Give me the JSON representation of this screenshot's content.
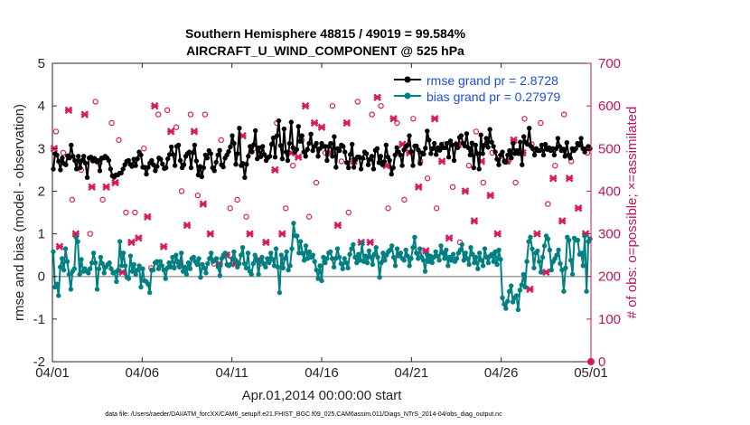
{
  "chart_data": {
    "type": "line",
    "title": "Southern Hemisphere 48815 / 49019 = 99.584%",
    "subtitle": "AIRCRAFT_U_WIND_COMPONENT @ 525 hPa",
    "xlabel": "Apr.01,2014 00:00:00 start",
    "ylabel_left": "rmse and bias (model - observation)",
    "ylabel_right": "# of obs: o=possible; ×=assimilated",
    "footnote": "data file: /Users/raeder/DAI/ATM_forcXX/CAM6_setup/f.e21.FHIST_BGC.f09_025.CAM6assim.011/Diags_NTrS_2014-04/obs_diag_output.nc",
    "xlim": [
      0,
      30
    ],
    "ylim_left": [
      -2,
      5
    ],
    "ylim_right": [
      0,
      700
    ],
    "x_ticks": [
      0,
      5,
      10,
      15,
      20,
      25,
      30
    ],
    "x_tick_labels": [
      "04/01",
      "04/06",
      "04/11",
      "04/16",
      "04/21",
      "04/26",
      "05/01"
    ],
    "y_ticks_left": [
      -2,
      -1,
      0,
      1,
      2,
      3,
      4,
      5
    ],
    "y_ticks_right": [
      0,
      100,
      200,
      300,
      400,
      500,
      600,
      700
    ],
    "legend_location": "top-right",
    "colors": {
      "rmse": "#000000",
      "bias": "#008080",
      "obs": "#d61c5c",
      "zero_line": "#a0a0a0",
      "right_axis": "#c0145a"
    },
    "series": [
      {
        "name": "rmse grand pr = 2.8728",
        "values": [
          2.52,
          2.88,
          2.85,
          2.7,
          2.5,
          2.78,
          2.65,
          2.62,
          2.83,
          2.78,
          3.08,
          2.82,
          2.72,
          2.52,
          2.82,
          2.55,
          2.72,
          2.82,
          2.66,
          2.32,
          2.78,
          2.8,
          2.71,
          2.77,
          2.7,
          2.72,
          2.48,
          2.78,
          2.78,
          2.82,
          2.78,
          2.72,
          2.52,
          2.36,
          2.33,
          2.38,
          2.38,
          2.42,
          2.43,
          2.52,
          2.62,
          2.7,
          2.72,
          2.63,
          2.58,
          2.75,
          2.6,
          2.76,
          2.92,
          2.85,
          2.56,
          2.56,
          2.4,
          2.56,
          2.66,
          2.72,
          2.62,
          2.48,
          2.58,
          2.78,
          2.75,
          2.64,
          2.53,
          2.55,
          2.76,
          2.86,
          3.04,
          2.86,
          2.6,
          3.05,
          3.08,
          2.72,
          2.55,
          2.62,
          2.82,
          2.88,
          2.92,
          2.55,
          2.9,
          3.08,
          2.71,
          2.38,
          2.58,
          2.34,
          2.55,
          2.85,
          2.78,
          2.95,
          2.88,
          2.55,
          2.48,
          2.68,
          2.85,
          2.96,
          2.62,
          2.57,
          2.78,
          2.85,
          2.93,
          3.04,
          3.3,
          3.12,
          2.63,
          2.88,
          3.48,
          2.6,
          2.65,
          2.32,
          2.63,
          2.82,
          3.05,
          2.92,
          3.09,
          3.42,
          2.76,
          3.02,
          2.81,
          3.05,
          2.86,
          2.72,
          2.79,
          2.82,
          3.1,
          3.25,
          2.8,
          3.3,
          3.65,
          3.07,
          2.76,
          3.46,
          2.92,
          2.72,
          3.12,
          3.62,
          3.02,
          2.92,
          2.98,
          3.52,
          3.17,
          3.3,
          2.92,
          2.82,
          2.98,
          3.12,
          3.34,
          2.95,
          3.05,
          3.12,
          2.82,
          3.0,
          3.12,
          3.05,
          3.05,
          2.72,
          3.05,
          3.12,
          2.82,
          3.28,
          2.56,
          3.0,
          2.95,
          3.08,
          3.05,
          2.92,
          2.67,
          2.55,
          2.86,
          3.1,
          2.56,
          2.75,
          2.8,
          2.8,
          2.52,
          2.77,
          2.92,
          2.88,
          2.62,
          2.75,
          2.82,
          2.52,
          2.96,
          3.0,
          2.67,
          2.82,
          2.62,
          2.69,
          3.08,
          2.8,
          2.72,
          2.4,
          2.55,
          2.85,
          3.02,
          2.92,
          2.85,
          2.6,
          2.97,
          3.04,
          3.08,
          3.3,
          2.93,
          2.6,
          3.06,
          3.06,
          2.97,
          2.65,
          2.9,
          2.87,
          3.01,
          3.41,
          3.2,
          2.88,
          3.0,
          3.12,
          2.86,
          3.02,
          2.96,
          3.1,
          3.02,
          3.02,
          3.12,
          2.8,
          3.18,
          3.08,
          2.72,
          3.1,
          3.02,
          3.26,
          3.3,
          3.12,
          3.06,
          3.35,
          3.02,
          2.85,
          3.13,
          2.55,
          3.08,
          2.88,
          2.52,
          3.32,
          2.88,
          3.08,
          3.24,
          3.03,
          3.45,
          3.15,
          3.05,
          2.92,
          2.75,
          2.62,
          2.85,
          2.92,
          2.7,
          2.68,
          2.85,
          2.95,
          2.78,
          3.12,
          2.88,
          2.95,
          2.88,
          3.15,
          2.62,
          3.28,
          3.15,
          3.1,
          3.48,
          3.05,
          3.0,
          2.85,
          3.0,
          2.95,
          2.95,
          3.08,
          2.85,
          3.1,
          2.98,
          3.02,
          2.95,
          3.0,
          2.85,
          3.0,
          3.24,
          3.05,
          2.95,
          2.99,
          2.82,
          3.14,
          2.85,
          2.78,
          3.0,
          2.95,
          3.0,
          3.12,
          3.08,
          3.24,
          3.0,
          2.92,
          3.0,
          3.05,
          3.0
        ]
      },
      {
        "name": "bias grand pr = 0.27979",
        "values": [
          0.58,
          -0.25,
          -0.18,
          -0.45,
          0.22,
          0.42,
          0.15,
          0.65,
          0.35,
          0.05,
          -0.3,
          0.12,
          0.18,
          0.92,
          0.82,
          0.05,
          0.4,
          0.12,
          0.18,
          0.12,
          0.08,
          0.18,
          0.32,
          0.55,
          0.32,
          -0.3,
          0.18,
          0.45,
          0.3,
          0.08,
          0.22,
          0.28,
          0.32,
          0.18,
          0.08,
          0.1,
          -0.12,
          0.15,
          0.82,
          0.25,
          0.55,
          0.25,
          -0.02,
          -0.05,
          0.48,
          0.12,
          0.28,
          0.05,
          0.15,
          0.25,
          -0.25,
          0.18,
          -0.1,
          -0.12,
          -0.18,
          -0.38,
          0.15,
          0.15,
          0.32,
          0.35,
          0.18,
          0.35,
          0.25,
          0.15,
          -0.05,
          0.2,
          0.32,
          0.22,
          0.45,
          0.2,
          0.5,
          0.35,
          0.22,
          0.55,
          0.12,
          0.22,
          0.05,
          0.32,
          0.18,
          0.42,
          0.45,
          0.35,
          0.28,
          0.42,
          -0.02,
          0.28,
          0.2,
          0.08,
          0.3,
          0.42,
          0.55,
          0.35,
          0.38,
          0.42,
          0.22,
          0.02,
          0.42,
          0.5,
          0.55,
          0.28,
          0.25,
          0.28,
          0.42,
          0.58,
          0.38,
          0.22,
          0.3,
          0.5,
          0.68,
          0.3,
          0.2,
          0.55,
          0.12,
          0.05,
          0.3,
          0.5,
          0.38,
          0.05,
          0.35,
          0.45,
          0.3,
          0.22,
          0.42,
          0.32,
          0.55,
          0.4,
          0.25,
          0.65,
          0.22,
          -0.38,
          0.5,
          0.2,
          0.42,
          0.58,
          0.15,
          0.25,
          0.65,
          1.25,
          0.95,
          0.95,
          0.55,
          0.82,
          0.55,
          0.38,
          0.72,
          0.42,
          0.58,
          0.45,
          0.5,
          0.35,
          0.15,
          -0.05,
          0.25,
          -0.1,
          0.45,
          0.32,
          0.42,
          0.55,
          0.58,
          0.42,
          0.22,
          0.42,
          0.65,
          0.45,
          0.3,
          0.18,
          0.42,
          0.32,
          0.2,
          0.52,
          0.65,
          0.75,
          0.45,
          0.32,
          0.52,
          0.38,
          0.78,
          0.35,
          0.48,
          0.32,
          0.6,
          0.45,
          0.28,
          0.52,
          0.68,
          0.45,
          -0.02,
          0.32,
          0.55,
          0.38,
          0.5,
          0.58,
          0.62,
          0.72,
          0.45,
          0.25,
          0.65,
          0.48,
          0.55,
          0.42,
          0.38,
          0.62,
          0.48,
          0.25,
          0.42,
          0.68,
          0.92,
          0.55,
          0.42,
          0.65,
          0.45,
          0.38,
          0.12,
          0.52,
          0.35,
          0.48,
          0.32,
          0.45,
          0.58,
          0.48,
          0.38,
          0.72,
          0.55,
          0.42,
          0.62,
          0.25,
          0.45,
          0.38,
          0.52,
          0.35,
          0.42,
          0.55,
          0.62,
          0.75,
          0.38,
          0.55,
          0.42,
          0.28,
          0.68,
          0.52,
          0.32,
          0.45,
          0.18,
          0.55,
          0.38,
          0.25,
          0.65,
          0.45,
          0.32,
          0.48,
          0.52,
          0.35,
          0.58,
          0.28,
          0.62,
          0.4,
          -0.5,
          -0.65,
          -0.75,
          -0.58,
          -0.35,
          -0.22,
          -0.6,
          -0.5,
          -0.45,
          -0.78,
          -0.32,
          -0.2,
          0.05,
          -0.25,
          0.35,
          0.82,
          0.92,
          0.65,
          0.2,
          0.55,
          0.6,
          0.35,
          0.1,
          0.45,
          0.72,
          0.95,
          0.88,
          0.62,
          0.15,
          0.35,
          0.42,
          0.5,
          0.62,
          0.3,
          0.15,
          -0.35,
          0.2,
          0.92,
          0.85,
          0.38,
          0.05,
          0.9,
          0.85,
          0.85,
          0.52,
          0.55,
          0.25,
          0.95,
          -0.35,
          0.82,
          0.88
        ]
      },
      {
        "name": "# of obs possible",
        "axis": "right",
        "x": [
          0.2,
          0.6,
          1.1,
          1.6,
          2.1,
          2.4,
          2.8,
          3.3,
          3.7,
          4.1,
          4.6,
          5.1,
          5.5,
          5.9,
          6.4,
          6.9,
          7.2,
          7.7,
          8.1,
          8.5,
          9.0,
          9.4,
          9.9,
          10.3,
          10.8,
          11.2,
          11.6,
          12.1,
          12.5,
          13.0,
          13.4,
          13.9,
          14.3,
          14.7,
          15.2,
          15.6,
          16.1,
          16.5,
          17.0,
          17.4,
          17.8,
          18.3,
          18.7,
          19.2,
          19.6,
          20.1,
          20.5,
          20.9,
          21.4,
          21.8,
          22.3,
          22.7,
          23.2,
          23.6,
          24.0,
          24.5,
          24.9,
          25.4,
          25.8,
          26.3,
          26.7,
          27.2,
          27.6,
          28.0,
          28.5,
          28.9,
          29.4,
          29.8
        ],
        "values": [
          540,
          490,
          380,
          450,
          300,
          610,
          380,
          560,
          520,
          350,
          350,
          500,
          220,
          580,
          590,
          550,
          400,
          580,
          390,
          580,
          230,
          520,
          360,
          380,
          340,
          500,
          230,
          240,
          560,
          360,
          460,
          520,
          340,
          420,
          490,
          600,
          470,
          350,
          610,
          480,
          580,
          600,
          360,
          560,
          380,
          570,
          470,
          430,
          360,
          510,
          410,
          280,
          460,
          540,
          420,
          490,
          480,
          470,
          420,
          570,
          510,
          560,
          370,
          460,
          580,
          470,
          510,
          490
        ]
      },
      {
        "name": "# of obs assimilated",
        "axis": "right",
        "x": [
          0.1,
          0.4,
          0.9,
          1.3,
          1.8,
          2.2,
          2.6,
          3.0,
          3.5,
          3.9,
          4.4,
          4.8,
          5.3,
          5.7,
          6.2,
          6.6,
          7.1,
          7.5,
          7.9,
          8.4,
          8.8,
          9.3,
          9.7,
          10.2,
          10.6,
          11.0,
          11.5,
          11.9,
          12.4,
          12.8,
          13.3,
          13.7,
          14.1,
          14.6,
          15.0,
          15.5,
          15.9,
          16.4,
          16.8,
          17.2,
          17.7,
          18.1,
          18.6,
          19.0,
          19.5,
          19.9,
          20.4,
          20.8,
          21.3,
          21.7,
          22.1,
          22.6,
          23.0,
          23.5,
          23.9,
          24.4,
          24.8,
          25.3,
          25.7,
          26.2,
          26.6,
          27.0,
          27.5,
          27.9,
          28.4,
          28.8,
          29.3,
          29.7
        ],
        "values": [
          500,
          270,
          590,
          300,
          580,
          410,
          470,
          410,
          420,
          210,
          280,
          290,
          340,
          600,
          270,
          540,
          230,
          320,
          540,
          370,
          300,
          230,
          250,
          230,
          530,
          300,
          240,
          280,
          450,
          300,
          490,
          480,
          600,
          560,
          550,
          490,
          320,
          560,
          470,
          280,
          280,
          620,
          460,
          570,
          510,
          490,
          410,
          260,
          570,
          470,
          290,
          510,
          400,
          330,
          470,
          390,
          300,
          470,
          520,
          490,
          170,
          300,
          210,
          430,
          330,
          430,
          360,
          300
        ]
      }
    ]
  }
}
